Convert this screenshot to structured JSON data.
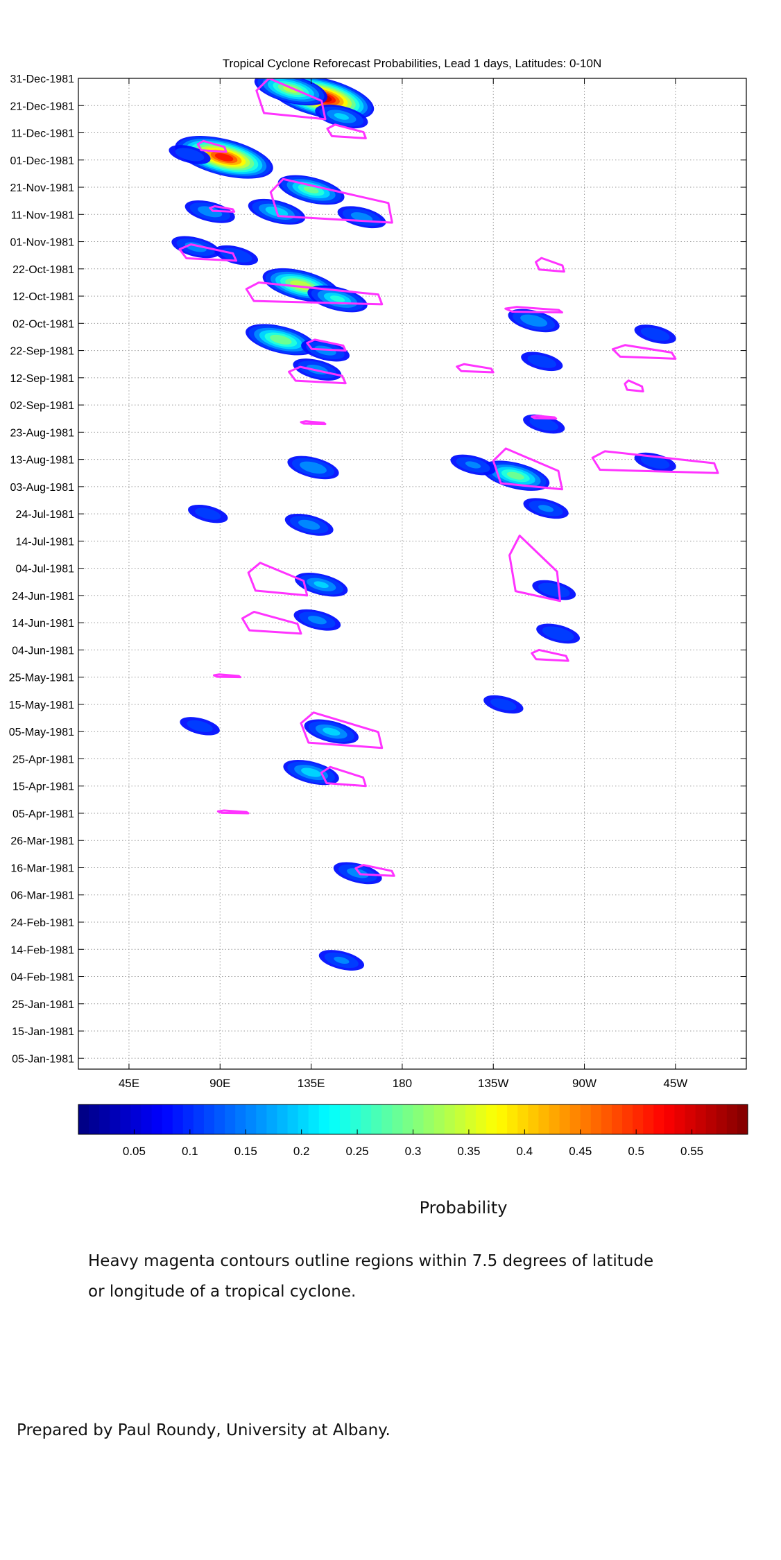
{
  "chart_data": {
    "type": "heatmap",
    "title": "Tropical Cyclone Reforecast Probabilities, Lead 1 days, Latitudes: 0-10N",
    "x_tick_labels": [
      "45E",
      "90E",
      "135E",
      "180",
      "135W",
      "90W",
      "45W"
    ],
    "x_tick_values_deg_east": [
      45,
      90,
      135,
      180,
      225,
      270,
      315
    ],
    "xlim_deg_east": [
      20,
      350
    ],
    "y_tick_labels": [
      "31-Dec-1981",
      "21-Dec-1981",
      "11-Dec-1981",
      "01-Dec-1981",
      "21-Nov-1981",
      "11-Nov-1981",
      "01-Nov-1981",
      "22-Oct-1981",
      "12-Oct-1981",
      "02-Oct-1981",
      "22-Sep-1981",
      "12-Sep-1981",
      "02-Sep-1981",
      "23-Aug-1981",
      "13-Aug-1981",
      "03-Aug-1981",
      "24-Jul-1981",
      "14-Jul-1981",
      "04-Jul-1981",
      "24-Jun-1981",
      "14-Jun-1981",
      "04-Jun-1981",
      "25-May-1981",
      "15-May-1981",
      "05-May-1981",
      "25-Apr-1981",
      "15-Apr-1981",
      "05-Apr-1981",
      "26-Mar-1981",
      "16-Mar-1981",
      "06-Mar-1981",
      "24-Feb-1981",
      "14-Feb-1981",
      "04-Feb-1981",
      "25-Jan-1981",
      "15-Jan-1981",
      "05-Jan-1981"
    ],
    "ylim": [
      "01-Jan-1981",
      "31-Dec-1981"
    ],
    "grid": true,
    "colormap": "jet",
    "colorbar": {
      "range": [
        0,
        0.6
      ],
      "tick_labels": [
        "0.05",
        "0.1",
        "0.15",
        "0.2",
        "0.25",
        "0.3",
        "0.35",
        "0.4",
        "0.45",
        "0.5",
        "0.55"
      ],
      "tick_values": [
        0.05,
        0.1,
        0.15,
        0.2,
        0.25,
        0.3,
        0.35,
        0.4,
        0.45,
        0.5,
        0.55
      ],
      "label": "Probability"
    },
    "blobs": [
      {
        "lon": 140,
        "date": "1981-12-24",
        "p": 0.56
      },
      {
        "lon": 125,
        "date": "1981-12-27",
        "p": 0.3
      },
      {
        "lon": 150,
        "date": "1981-12-17",
        "p": 0.15
      },
      {
        "lon": 92,
        "date": "1981-12-02",
        "p": 0.5
      },
      {
        "lon": 75,
        "date": "1981-12-03",
        "p": 0.08
      },
      {
        "lon": 135,
        "date": "1981-11-20",
        "p": 0.25
      },
      {
        "lon": 118,
        "date": "1981-11-12",
        "p": 0.18
      },
      {
        "lon": 160,
        "date": "1981-11-10",
        "p": 0.12
      },
      {
        "lon": 85,
        "date": "1981-11-12",
        "p": 0.13
      },
      {
        "lon": 78,
        "date": "1981-10-30",
        "p": 0.12
      },
      {
        "lon": 98,
        "date": "1981-10-27",
        "p": 0.09
      },
      {
        "lon": 130,
        "date": "1981-10-16",
        "p": 0.33
      },
      {
        "lon": 148,
        "date": "1981-10-11",
        "p": 0.2
      },
      {
        "lon": 120,
        "date": "1981-09-26",
        "p": 0.28
      },
      {
        "lon": 142,
        "date": "1981-09-22",
        "p": 0.12
      },
      {
        "lon": 138,
        "date": "1981-09-15",
        "p": 0.12
      },
      {
        "lon": 245,
        "date": "1981-10-03",
        "p": 0.14
      },
      {
        "lon": 249,
        "date": "1981-09-18",
        "p": 0.08
      },
      {
        "lon": 250,
        "date": "1981-08-26",
        "p": 0.08
      },
      {
        "lon": 236,
        "date": "1981-08-07",
        "p": 0.26
      },
      {
        "lon": 215,
        "date": "1981-08-11",
        "p": 0.1
      },
      {
        "lon": 251,
        "date": "1981-07-26",
        "p": 0.1
      },
      {
        "lon": 255,
        "date": "1981-06-26",
        "p": 0.09
      },
      {
        "lon": 257,
        "date": "1981-06-10",
        "p": 0.09
      },
      {
        "lon": 305,
        "date": "1981-09-28",
        "p": 0.08
      },
      {
        "lon": 305,
        "date": "1981-08-12",
        "p": 0.08
      },
      {
        "lon": 136,
        "date": "1981-08-10",
        "p": 0.14
      },
      {
        "lon": 134,
        "date": "1981-07-20",
        "p": 0.12
      },
      {
        "lon": 140,
        "date": "1981-06-28",
        "p": 0.15
      },
      {
        "lon": 138,
        "date": "1981-06-15",
        "p": 0.11
      },
      {
        "lon": 84,
        "date": "1981-07-24",
        "p": 0.07
      },
      {
        "lon": 145,
        "date": "1981-05-05",
        "p": 0.16
      },
      {
        "lon": 135,
        "date": "1981-04-20",
        "p": 0.17
      },
      {
        "lon": 158,
        "date": "1981-03-14",
        "p": 0.12
      },
      {
        "lon": 150,
        "date": "1981-02-10",
        "p": 0.1
      },
      {
        "lon": 80,
        "date": "1981-05-07",
        "p": 0.07
      },
      {
        "lon": 230,
        "date": "1981-05-15",
        "p": 0.07
      }
    ],
    "contours": [
      {
        "lon": [
          108,
          142
        ],
        "date": [
          "1981-12-16",
          "1981-12-31"
        ]
      },
      {
        "lon": [
          143,
          162
        ],
        "date": [
          "1981-12-09",
          "1981-12-14"
        ]
      },
      {
        "lon": [
          79,
          93
        ],
        "date": [
          "1981-12-04",
          "1981-12-08"
        ]
      },
      {
        "lon": [
          115,
          175
        ],
        "date": [
          "1981-11-08",
          "1981-11-24"
        ]
      },
      {
        "lon": [
          85,
          97
        ],
        "date": [
          "1981-11-12",
          "1981-11-14"
        ]
      },
      {
        "lon": [
          70,
          98
        ],
        "date": [
          "1981-10-25",
          "1981-10-31"
        ]
      },
      {
        "lon": [
          103,
          170
        ],
        "date": [
          "1981-10-09",
          "1981-10-17"
        ]
      },
      {
        "lon": [
          133,
          152
        ],
        "date": [
          "1981-09-22",
          "1981-09-26"
        ]
      },
      {
        "lon": [
          124,
          152
        ],
        "date": [
          "1981-09-10",
          "1981-09-16"
        ]
      },
      {
        "lon": [
          130,
          142
        ],
        "date": [
          "1981-08-26",
          "1981-08-27"
        ]
      },
      {
        "lon": [
          231,
          259
        ],
        "date": [
          "1981-10-06",
          "1981-10-08"
        ]
      },
      {
        "lon": [
          207,
          225
        ],
        "date": [
          "1981-09-14",
          "1981-09-17"
        ]
      },
      {
        "lon": [
          246,
          260
        ],
        "date": [
          "1981-10-21",
          "1981-10-26"
        ]
      },
      {
        "lon": [
          284,
          315
        ],
        "date": [
          "1981-09-19",
          "1981-09-24"
        ]
      },
      {
        "lon": [
          290,
          299
        ],
        "date": [
          "1981-09-07",
          "1981-09-11"
        ]
      },
      {
        "lon": [
          244,
          256
        ],
        "date": [
          "1981-08-28",
          "1981-08-29"
        ]
      },
      {
        "lon": [
          225,
          259
        ],
        "date": [
          "1981-08-02",
          "1981-08-17"
        ]
      },
      {
        "lon": [
          274,
          336
        ],
        "date": [
          "1981-08-08",
          "1981-08-16"
        ]
      },
      {
        "lon": [
          233,
          258
        ],
        "date": [
          "1981-06-22",
          "1981-07-16"
        ]
      },
      {
        "lon": [
          104,
          133
        ],
        "date": [
          "1981-06-24",
          "1981-07-06"
        ]
      },
      {
        "lon": [
          101,
          130
        ],
        "date": [
          "1981-06-10",
          "1981-06-18"
        ]
      },
      {
        "lon": [
          244,
          262
        ],
        "date": [
          "1981-05-31",
          "1981-06-04"
        ]
      },
      {
        "lon": [
          87,
          100
        ],
        "date": [
          "1981-05-25",
          "1981-05-26"
        ]
      },
      {
        "lon": [
          130,
          170
        ],
        "date": [
          "1981-04-29",
          "1981-05-12"
        ]
      },
      {
        "lon": [
          140,
          162
        ],
        "date": [
          "1981-04-15",
          "1981-04-22"
        ]
      },
      {
        "lon": [
          89,
          104
        ],
        "date": [
          "1981-04-05",
          "1981-04-06"
        ]
      },
      {
        "lon": [
          157,
          176
        ],
        "date": [
          "1981-03-13",
          "1981-03-17"
        ]
      }
    ]
  },
  "caption": {
    "colorbar_label": "Probability",
    "note_line_1": "Heavy magenta contours outline regions within 7.5 degrees of latitude",
    "note_line_2": "or longitude of a tropical cyclone.",
    "credit": "Prepared by Paul Roundy, University at Albany."
  },
  "colors": {
    "contour": "#ff33ff",
    "grid": "#9a9a9a",
    "axis": "#000000"
  }
}
